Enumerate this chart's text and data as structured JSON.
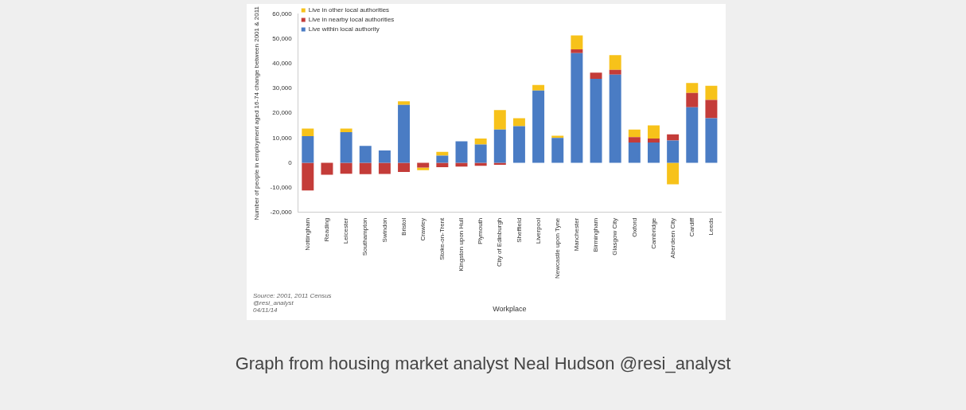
{
  "chart_data": {
    "type": "bar",
    "stacked": true,
    "xlabel": "Workplace",
    "ylabel": "Number of people in employment aged 16-74 change between 2001 & 2011",
    "categories": [
      "Nottingham",
      "Reading",
      "Leicester",
      "Southampton",
      "Swindon",
      "Bristol",
      "Crawley",
      "Stoke-on-Trent",
      "Kingston upon Hull",
      "Plymouth",
      "City of Edinburgh",
      "Sheffield",
      "Liverpool",
      "Newcastle upon Tyne",
      "Manchester",
      "Birmingham",
      "Glasgow City",
      "Oxford",
      "Cambridge",
      "Aberdeen City",
      "Cardiff",
      "Leeds"
    ],
    "series": [
      {
        "name": "Live within local authority",
        "color": "#4a7cc4",
        "values": [
          10800,
          null,
          12400,
          6800,
          5000,
          23400,
          null,
          2900,
          8700,
          7400,
          13400,
          14800,
          29200,
          10000,
          44300,
          33900,
          35600,
          8200,
          8200,
          9000,
          22400,
          18000
        ]
      },
      {
        "name": "Live in nearby local authorities",
        "color": "#c43c39",
        "values": [
          -11200,
          -4800,
          -4400,
          -4600,
          -4500,
          -3700,
          -1900,
          -1800,
          -1500,
          -1200,
          -800,
          null,
          null,
          null,
          1500,
          2500,
          1900,
          2200,
          1600,
          2500,
          5800,
          7400
        ]
      },
      {
        "name": "Live in other local authorities",
        "color": "#f7c21a",
        "values": [
          3000,
          null,
          1400,
          null,
          null,
          1400,
          -1100,
          1500,
          null,
          2400,
          7900,
          3200,
          2200,
          900,
          5600,
          null,
          6000,
          3000,
          5300,
          -8700,
          4000,
          5700
        ]
      }
    ],
    "ylim": [
      -20000,
      60000
    ],
    "yticks": [
      {
        "value": -20000,
        "label": "-20,000"
      },
      {
        "value": -10000,
        "label": "-10,000"
      },
      0,
      {
        "value": 10000,
        "label": "10,000"
      },
      {
        "value": 20000,
        "label": "20,000"
      },
      {
        "value": 30000,
        "label": "30,000"
      },
      {
        "value": 40000,
        "label": "40,000"
      },
      {
        "value": 50000,
        "label": "50,000"
      },
      {
        "value": 60000,
        "label": "60,000"
      }
    ],
    "grid": false,
    "legend": "top left",
    "annotations": [
      "Source: 2001, 2011 Census",
      "@resi_analyst",
      "04/11/14",
      "Graph from housing market analyst Neal Hudson @resi_analyst"
    ]
  }
}
